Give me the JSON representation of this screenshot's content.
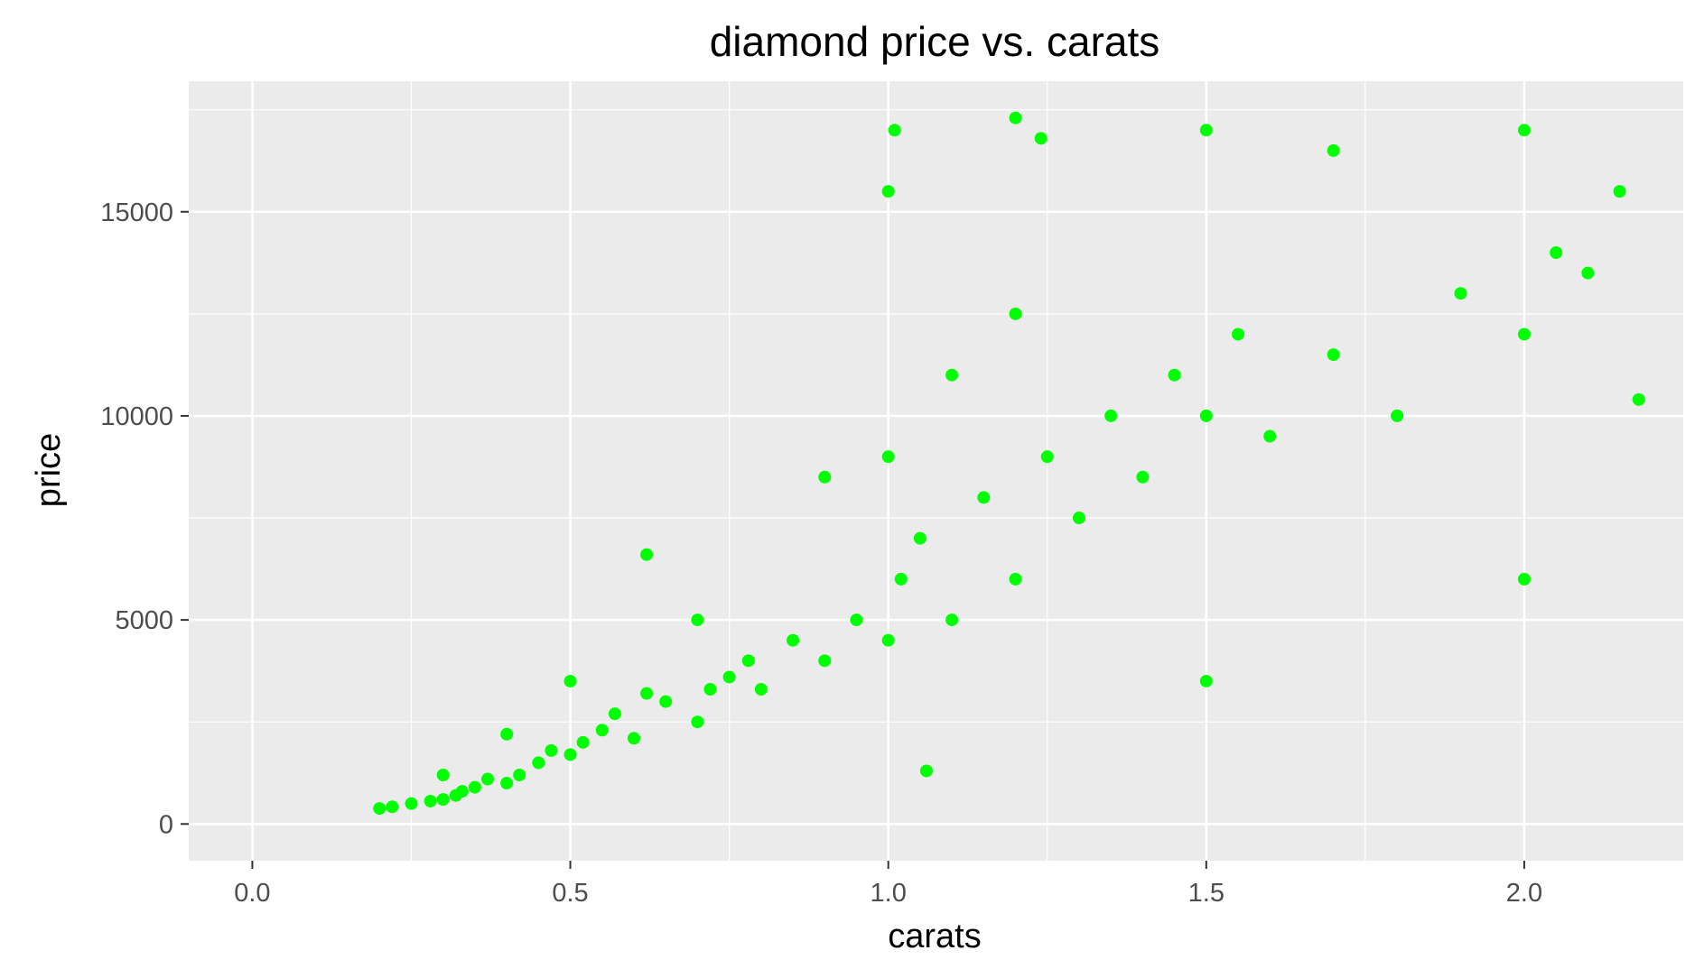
{
  "chart_data": {
    "type": "scatter",
    "title": "diamond price vs. carats",
    "xlabel": "carats",
    "ylabel": "price",
    "xlim": [
      -0.1,
      2.25
    ],
    "ylim": [
      -900,
      18200
    ],
    "x_ticks": [
      0.0,
      0.5,
      1.0,
      1.5,
      2.0
    ],
    "x_tick_labels": [
      "0.0",
      "0.5",
      "1.0",
      "1.5",
      "2.0"
    ],
    "y_ticks": [
      0,
      5000,
      10000,
      15000
    ],
    "y_tick_labels": [
      "0",
      "5000",
      "10000",
      "15000"
    ],
    "grid": true,
    "legend": "none",
    "colors": {
      "points": "#00ff00",
      "panel": "#ebebeb",
      "grid": "#ffffff",
      "tick": "#333333"
    },
    "series": [
      {
        "x": [
          0.2,
          0.22,
          0.25,
          0.28,
          0.3,
          0.3,
          0.32,
          0.33,
          0.35,
          0.37,
          0.4,
          0.4,
          0.42,
          0.45,
          0.47,
          0.5,
          0.5,
          0.52,
          0.55,
          0.57,
          0.6,
          0.62,
          0.65,
          0.7,
          0.7,
          0.72,
          0.75,
          0.78,
          0.8,
          0.85,
          0.9,
          0.9,
          0.95,
          1.0,
          1.0,
          1.0,
          1.02,
          1.05,
          1.1,
          1.1,
          1.15,
          1.2,
          1.2,
          1.25,
          1.3,
          1.35,
          1.4,
          1.45,
          1.5,
          1.5,
          1.5,
          1.55,
          1.6,
          1.7,
          1.7,
          1.8,
          1.9,
          2.0,
          2.0,
          2.0,
          2.05,
          2.1,
          2.15,
          2.18,
          1.2,
          1.24,
          0.62,
          1.01,
          1.06
        ],
        "y": [
          380,
          420,
          500,
          560,
          600,
          1200,
          700,
          800,
          900,
          1100,
          1000,
          2200,
          1200,
          1500,
          1800,
          1700,
          3500,
          2000,
          2300,
          2700,
          2100,
          3200,
          3000,
          2500,
          5000,
          3300,
          3600,
          4000,
          3300,
          4500,
          4000,
          8500,
          5000,
          4500,
          9000,
          15500,
          6000,
          7000,
          5000,
          11000,
          8000,
          6000,
          12500,
          9000,
          7500,
          10000,
          8500,
          11000,
          3500,
          10000,
          17000,
          12000,
          9500,
          11500,
          16500,
          10000,
          13000,
          6000,
          12000,
          17000,
          14000,
          13500,
          15500,
          10400,
          17300,
          16800,
          6600,
          17000,
          1300
        ]
      }
    ]
  }
}
